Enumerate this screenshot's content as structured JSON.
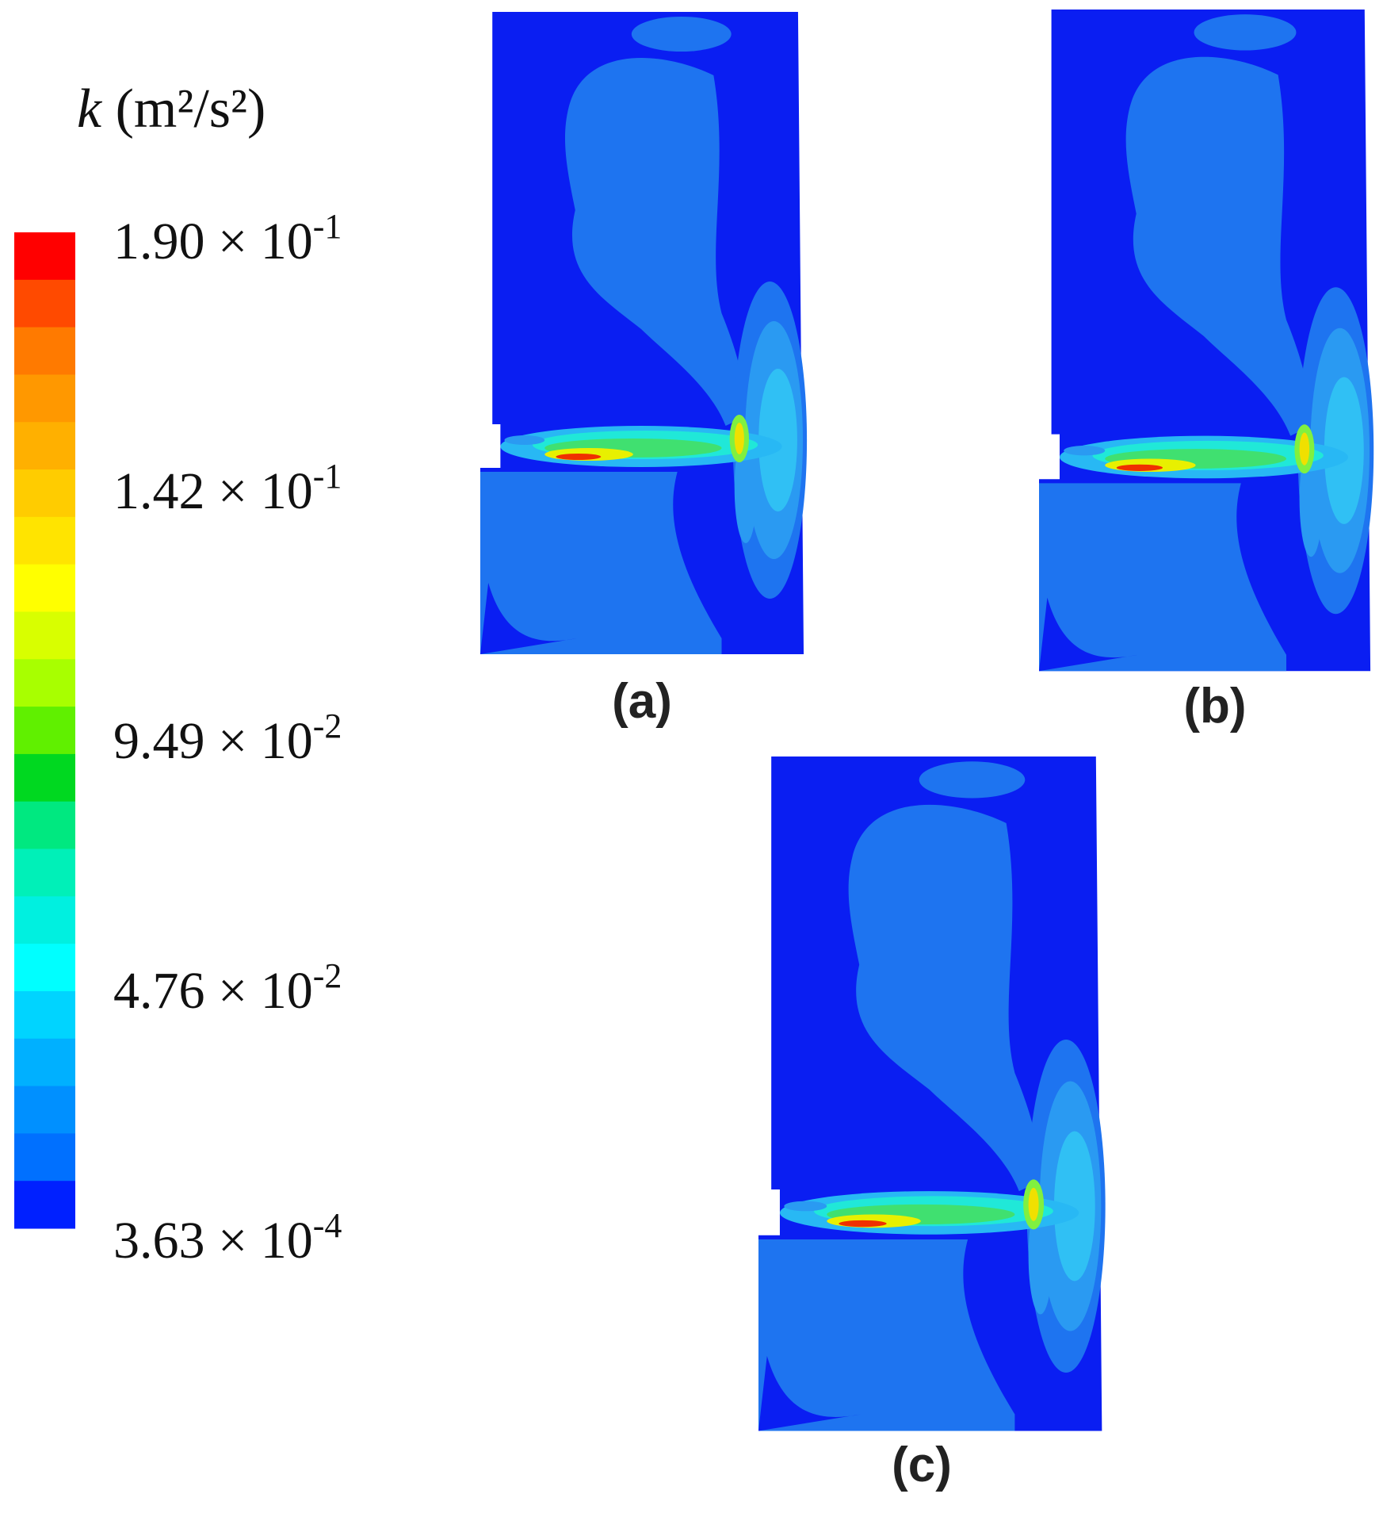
{
  "legend": {
    "title_var": "k",
    "title_unit": "(m²/s²)",
    "ticks": [
      {
        "base": "1.90 × 10",
        "exp": "-1"
      },
      {
        "base": "1.42 × 10",
        "exp": "-1"
      },
      {
        "base": "9.49 × 10",
        "exp": "-2"
      },
      {
        "base": "4.76 × 10",
        "exp": "-2"
      },
      {
        "base": "3.63 × 10",
        "exp": "-4"
      }
    ]
  },
  "panels": [
    {
      "label": "(a)"
    },
    {
      "label": "(b)"
    },
    {
      "label": "(c)"
    }
  ]
}
